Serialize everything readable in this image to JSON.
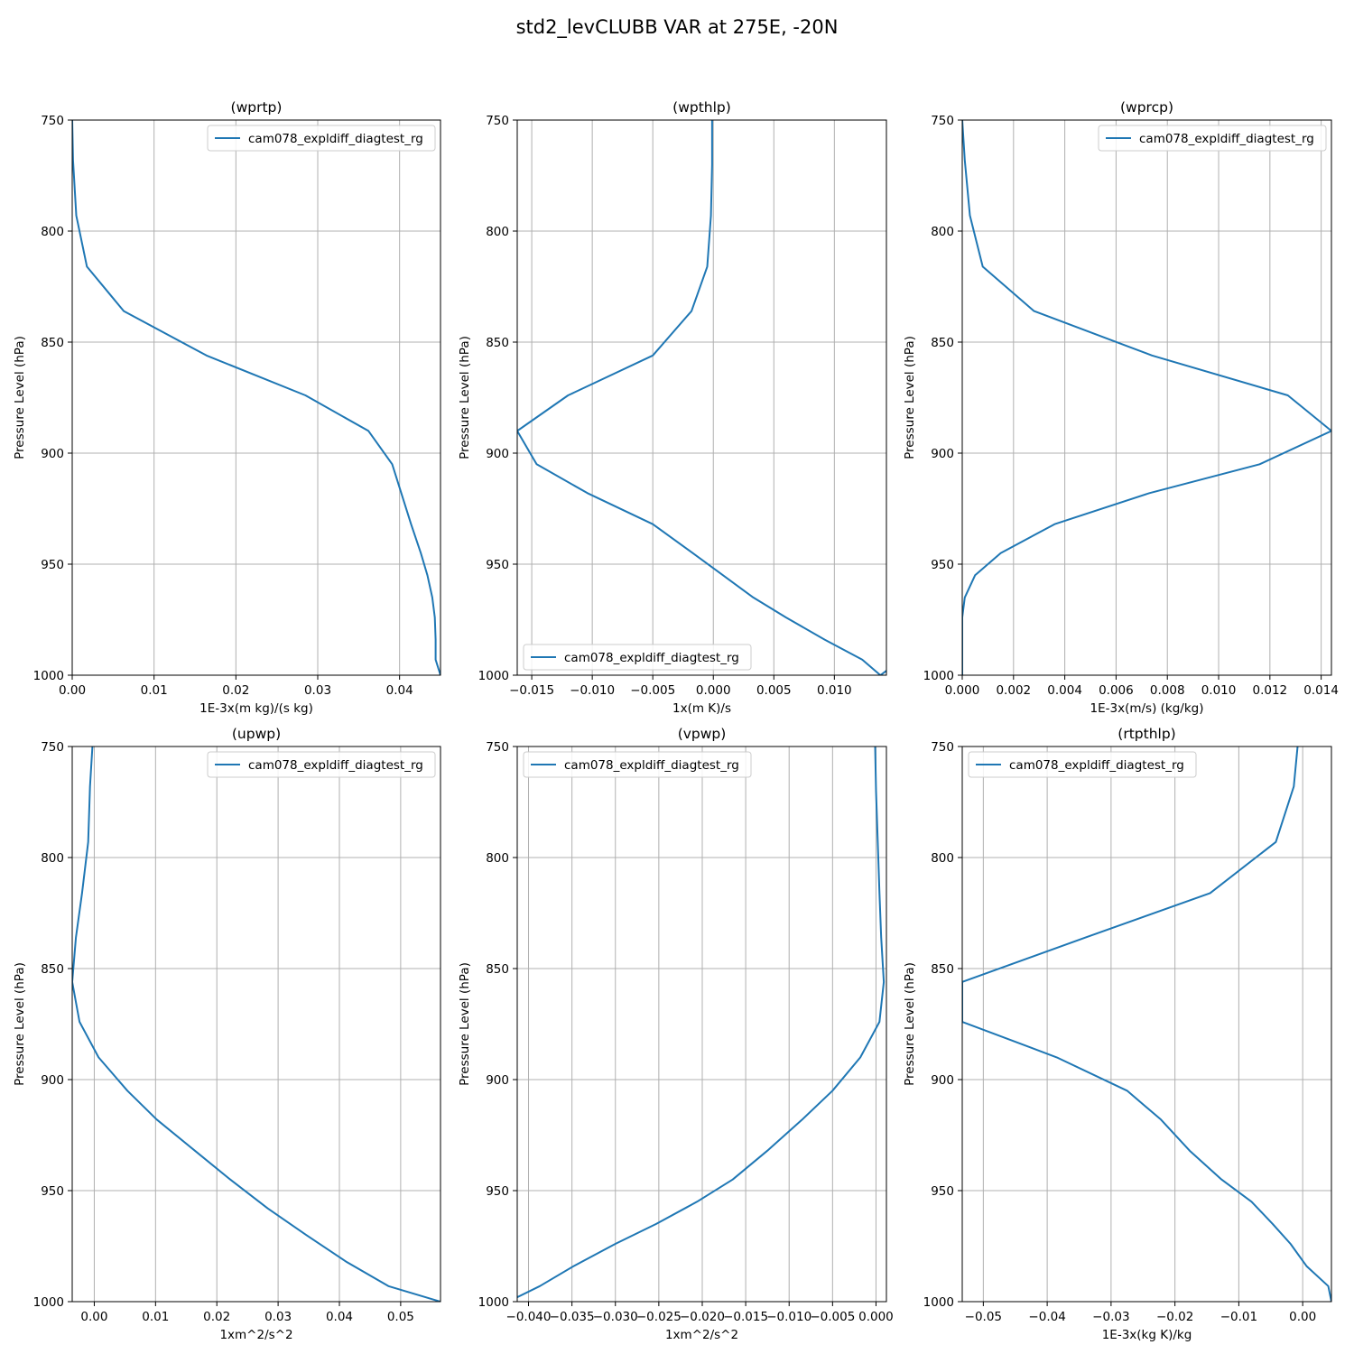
{
  "figure": {
    "title": "std2_levCLUBB VAR at 275E, -20N"
  },
  "style": {
    "line_color": "#1f77b4",
    "grid_color": "#b0b0b0",
    "axes_color": "#000000"
  },
  "chart_data": [
    {
      "type": "line",
      "title": "(wprtp)",
      "xlabel": "1E-3x(m kg)/(s kg)",
      "ylabel": "Pressure Level (hPa)",
      "xlim": [
        0.0,
        0.045
      ],
      "ylim": [
        1000,
        750
      ],
      "xticks": [
        0.0,
        0.01,
        0.02,
        0.03,
        0.04
      ],
      "xtick_labels": [
        "0.00",
        "0.01",
        "0.02",
        "0.03",
        "0.04"
      ],
      "yticks": [
        750,
        800,
        850,
        900,
        950,
        1000
      ],
      "ytick_labels": [
        "750",
        "800",
        "850",
        "900",
        "950",
        "1000"
      ],
      "grid": true,
      "legend": "top-right",
      "series": [
        {
          "name": "cam078_expldiff_diagtest_rg",
          "x": [
            0.0,
            0.0001,
            0.0005,
            0.0018,
            0.0063,
            0.0164,
            0.0285,
            0.0362,
            0.0391,
            0.0414,
            0.0426,
            0.0434,
            0.044,
            0.0443,
            0.0444,
            0.0444,
            0.045
          ],
          "y": [
            750,
            768,
            793,
            816,
            836,
            856,
            874,
            890,
            905,
            932,
            945,
            955,
            965,
            974,
            984,
            993,
            1000
          ]
        }
      ]
    },
    {
      "type": "line",
      "title": "(wpthlp)",
      "xlabel": "1x(m K)/s",
      "ylabel": "Pressure Level (hPa)",
      "xlim": [
        -0.0162,
        0.0143
      ],
      "ylim": [
        1000,
        750
      ],
      "xticks": [
        -0.015,
        -0.01,
        -0.005,
        0.0,
        0.005,
        0.01
      ],
      "xtick_labels": [
        "−0.015",
        "−0.010",
        "−0.005",
        "0.000",
        "0.005",
        "0.010"
      ],
      "yticks": [
        750,
        800,
        850,
        900,
        950,
        1000
      ],
      "ytick_labels": [
        "750",
        "800",
        "850",
        "900",
        "950",
        "1000"
      ],
      "grid": true,
      "legend": "bottom-left",
      "series": [
        {
          "name": "cam078_expldiff_diagtest_rg",
          "x": [
            -0.0001,
            -0.0001,
            -0.0002,
            -0.0005,
            -0.0018,
            -0.005,
            -0.012,
            -0.0162,
            -0.0146,
            -0.0104,
            -0.005,
            -0.0017,
            0.0008,
            0.0033,
            0.006,
            0.0092,
            0.0123,
            0.0138,
            0.0143
          ],
          "y": [
            750,
            770,
            793,
            816,
            836,
            856,
            874,
            890,
            905,
            918,
            932,
            945,
            955,
            965,
            974,
            984,
            993,
            1000,
            998
          ]
        }
      ]
    },
    {
      "type": "line",
      "title": "(wprcp)",
      "xlabel": "1E-3x(m/s) (kg/kg)",
      "ylabel": "Pressure Level (hPa)",
      "xlim": [
        0.0,
        0.0144
      ],
      "ylim": [
        1000,
        750
      ],
      "xticks": [
        0.0,
        0.002,
        0.004,
        0.006,
        0.008,
        0.01,
        0.012,
        0.014
      ],
      "xtick_labels": [
        "0.000",
        "0.002",
        "0.004",
        "0.006",
        "0.008",
        "0.010",
        "0.012",
        "0.014"
      ],
      "yticks": [
        750,
        800,
        850,
        900,
        950,
        1000
      ],
      "ytick_labels": [
        "750",
        "800",
        "850",
        "900",
        "950",
        "1000"
      ],
      "grid": true,
      "legend": "top-right",
      "series": [
        {
          "name": "cam078_expldiff_diagtest_rg",
          "x": [
            0.0,
            0.0001,
            0.0003,
            0.0008,
            0.0028,
            0.0074,
            0.0127,
            0.0144,
            0.0116,
            0.0073,
            0.0036,
            0.0015,
            0.0005,
            0.0001,
            0.0,
            0.0,
            0.0
          ],
          "y": [
            750,
            768,
            793,
            816,
            836,
            856,
            874,
            890,
            905,
            918,
            932,
            945,
            955,
            965,
            974,
            984,
            1000
          ]
        }
      ]
    },
    {
      "type": "line",
      "title": "(upwp)",
      "xlabel": "1xm^2/s^2",
      "ylabel": "Pressure Level (hPa)",
      "xlim": [
        -0.0036,
        0.0565
      ],
      "ylim": [
        1000,
        750
      ],
      "xticks": [
        0.0,
        0.01,
        0.02,
        0.03,
        0.04,
        0.05
      ],
      "xtick_labels": [
        "0.00",
        "0.01",
        "0.02",
        "0.03",
        "0.04",
        "0.05"
      ],
      "yticks": [
        750,
        800,
        850,
        900,
        950,
        1000
      ],
      "ytick_labels": [
        "750",
        "800",
        "850",
        "900",
        "950",
        "1000"
      ],
      "grid": true,
      "legend": "top-right",
      "series": [
        {
          "name": "cam078_expldiff_diagtest_rg",
          "x": [
            -0.0003,
            -0.0007,
            -0.001,
            -0.002,
            -0.003,
            -0.0036,
            -0.0024,
            0.0007,
            0.0054,
            0.0102,
            0.0164,
            0.0222,
            0.0283,
            0.0346,
            0.0411,
            0.048,
            0.0565
          ],
          "y": [
            750,
            768,
            793,
            816,
            836,
            856,
            874,
            890,
            905,
            918,
            932,
            945,
            958,
            970,
            982,
            993,
            1000
          ]
        }
      ]
    },
    {
      "type": "line",
      "title": "(vpwp)",
      "xlabel": "1xm^2/s^2",
      "ylabel": "Pressure Level (hPa)",
      "xlim": [
        -0.0413,
        0.0012
      ],
      "ylim": [
        1000,
        750
      ],
      "xticks": [
        -0.04,
        -0.035,
        -0.03,
        -0.025,
        -0.02,
        -0.015,
        -0.01,
        -0.005,
        0.0
      ],
      "xtick_labels": [
        "−0.040",
        "−0.035",
        "−0.030",
        "−0.025",
        "−0.020",
        "−0.015",
        "−0.010",
        "−0.005",
        "0.000"
      ],
      "yticks": [
        750,
        800,
        850,
        900,
        950,
        1000
      ],
      "ytick_labels": [
        "750",
        "800",
        "850",
        "900",
        "950",
        "1000"
      ],
      "grid": true,
      "legend": "top-left",
      "series": [
        {
          "name": "cam078_expldiff_diagtest_rg",
          "x": [
            -0.0001,
            0.0,
            0.0002,
            0.0004,
            0.0006,
            0.0009,
            0.0004,
            -0.0018,
            -0.005,
            -0.0085,
            -0.0125,
            -0.0165,
            -0.0206,
            -0.0253,
            -0.03,
            -0.0348,
            -0.0387,
            -0.0413
          ],
          "y": [
            750,
            770,
            793,
            816,
            836,
            856,
            874,
            890,
            905,
            918,
            932,
            945,
            955,
            965,
            974,
            984,
            993,
            998
          ]
        }
      ]
    },
    {
      "type": "line",
      "title": "(rtpthlp)",
      "xlabel": "1E-3x(kg K)/kg",
      "ylabel": "Pressure Level (hPa)",
      "xlim": [
        -0.0533,
        0.0045
      ],
      "ylim": [
        1000,
        750
      ],
      "xticks": [
        -0.05,
        -0.04,
        -0.03,
        -0.02,
        -0.01,
        0.0
      ],
      "xtick_labels": [
        "−0.05",
        "−0.04",
        "−0.03",
        "−0.02",
        "−0.01",
        "0.00"
      ],
      "yticks": [
        750,
        800,
        850,
        900,
        950,
        1000
      ],
      "ytick_labels": [
        "750",
        "800",
        "850",
        "900",
        "950",
        "1000"
      ],
      "grid": true,
      "legend": "top-left",
      "series": [
        {
          "name": "cam078_expldiff_diagtest_rg",
          "x": [
            -0.0008,
            -0.0014,
            -0.0042,
            -0.0145,
            -0.034,
            -0.0533,
            -0.0533,
            -0.0385,
            -0.0275,
            -0.0222,
            -0.0177,
            -0.0127,
            -0.008,
            -0.0047,
            -0.0019,
            0.0006,
            0.004,
            0.0045
          ],
          "y": [
            750,
            768,
            793,
            816,
            836,
            856,
            874,
            890,
            905,
            918,
            932,
            945,
            955,
            965,
            974,
            984,
            993,
            1000
          ]
        }
      ]
    }
  ]
}
